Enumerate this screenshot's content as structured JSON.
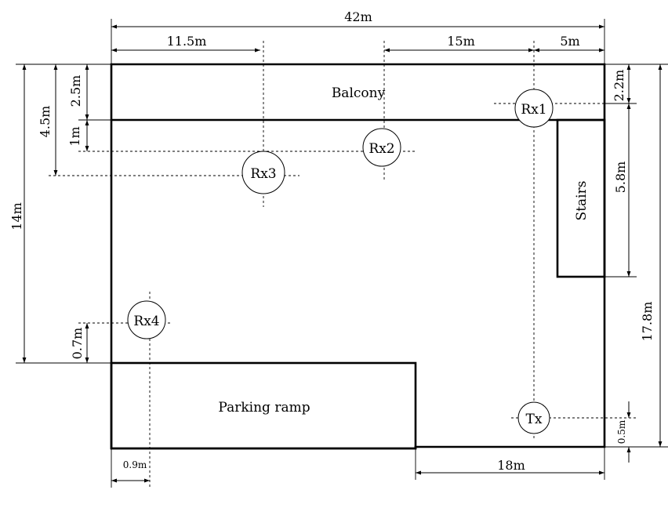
{
  "regions": {
    "balcony": "Balcony",
    "stairs": "Stairs",
    "parking_ramp": "Parking ramp"
  },
  "nodes": {
    "rx1": "Rx1",
    "rx2": "Rx2",
    "rx3": "Rx3",
    "rx4": "Rx4",
    "tx": "Tx"
  },
  "dimensions": {
    "total_width": "42m",
    "left_offset": "11.5m",
    "mid_span": "15m",
    "right_span": "5m",
    "balcony_depth": "2.5m",
    "rx3_depth": "4.5m",
    "rx2_offset": "1m",
    "total_height_left": "14m",
    "rx4_offset": "0.7m",
    "rx4_x_offset": "0.9m",
    "ramp_gap_width": "18m",
    "rx1_depth": "2.2m",
    "stairs_length": "5.8m",
    "total_height_right": "17.8m",
    "tx_offset": "0.5m"
  }
}
